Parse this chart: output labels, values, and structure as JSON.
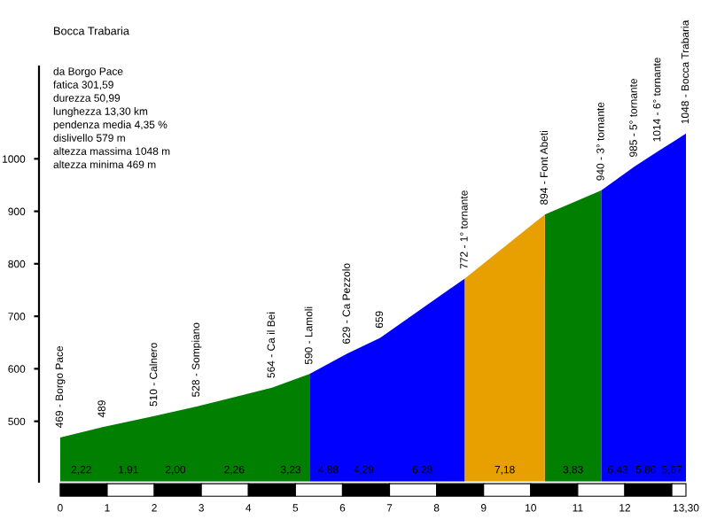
{
  "chart_data": {
    "type": "area",
    "title": "Bocca Trabaria",
    "subtitle": "da Borgo Pace\nfatica 301,59\ndurezza 50,99\nlunghezza 13,30 km\npendenza media 4,35 %\ndislivello 579 m\naltezza massima 1048 m\naltezza minima 469 m",
    "x": [
      0,
      0.9,
      2.0,
      2.9,
      4.5,
      5.3,
      6.1,
      6.8,
      8.6,
      10.3,
      11.5,
      12.2,
      12.7,
      13.3
    ],
    "series": [
      {
        "color": "#007f00",
        "values": [
          469,
          489,
          510,
          528,
          564,
          590,
          null,
          null,
          null,
          894,
          940,
          null,
          null,
          null
        ]
      },
      {
        "color": "#0000ff",
        "values": [
          null,
          null,
          null,
          null,
          null,
          590,
          629,
          659,
          772,
          null,
          940,
          985,
          1014,
          1048
        ]
      },
      {
        "color": "#e8a000",
        "values": [
          null,
          null,
          null,
          null,
          null,
          null,
          null,
          null,
          772,
          894,
          null,
          null,
          null,
          null
        ]
      }
    ],
    "value_labels": [
      "469 - Borgo Pace",
      "489",
      "510 - Calnero",
      "528 - Sompiano",
      "564 - Ca il Bei",
      "590 - Lamoli",
      "629 - Ca Pezzolo",
      "659",
      "772 - 1° tornante",
      "894 - Font Abeti",
      "940 - 3° tornante",
      "985 - 5° tornante",
      "1014 - 6° tornante",
      "1048 - Bocca Trabaria"
    ],
    "annotations": [
      "2,22",
      "1,91",
      "2,00",
      "2,26",
      "3,23",
      "4,88",
      "4,29",
      "6,28",
      "7,18",
      "3,83",
      "6,43",
      "5,80",
      "5,67"
    ],
    "xlim": [
      -0.45,
      13.3
    ],
    "ylim": [
      385,
      1176
    ],
    "xticks": [
      0,
      1,
      2,
      3,
      4,
      5,
      6,
      7,
      8,
      9,
      10,
      11,
      12,
      {
        "value": 13.3,
        "label": "13,30"
      }
    ],
    "yticks": [
      500,
      600,
      700,
      800,
      900,
      1000
    ],
    "grid": false
  }
}
